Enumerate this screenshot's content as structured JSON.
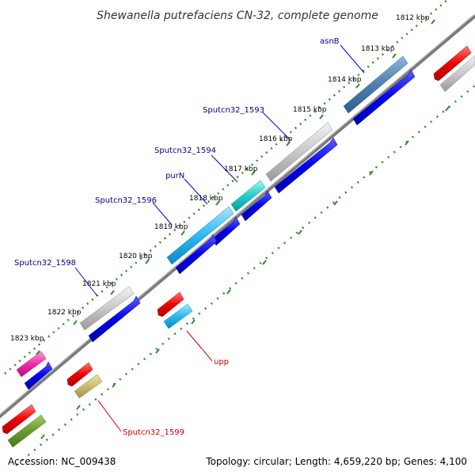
{
  "title": "Shewanella putrefaciens CN-32, complete genome",
  "colors": {
    "backbone": "#6e6e6e",
    "tick": "#2e8b2e",
    "forward_label": "#00008b",
    "reverse_label": "#cc0000",
    "cds_forward": "#0000ee",
    "cds_reverse": "#e00000"
  },
  "scale_ticks": [
    {
      "label": "1812 kbp"
    },
    {
      "label": "1813 kbp"
    },
    {
      "label": "1814 kbp"
    },
    {
      "label": "1815 kbp"
    },
    {
      "label": "1816 kbp"
    },
    {
      "label": "1817 kbp"
    },
    {
      "label": "1818 kbp"
    },
    {
      "label": "1819 kbp"
    },
    {
      "label": "1820 kbp"
    },
    {
      "label": "1821 kbp"
    },
    {
      "label": "1822 kbp"
    },
    {
      "label": "1823 kbp"
    }
  ],
  "gene_labels": [
    {
      "name": "asnB",
      "strand": "forward"
    },
    {
      "name": "Sputcn32_1593",
      "strand": "forward"
    },
    {
      "name": "Sputcn32_1594",
      "strand": "forward"
    },
    {
      "name": "purN",
      "strand": "forward"
    },
    {
      "name": "Sputcn32_1596",
      "strand": "forward"
    },
    {
      "name": "Sputcn32_1598",
      "strand": "forward"
    },
    {
      "name": "upp",
      "strand": "reverse"
    },
    {
      "name": "Sputcn32_1599",
      "strand": "reverse"
    }
  ],
  "footer": {
    "accession": "Accession: NC_009438",
    "summary": "Topology: circular; Length: 4,659,220 bp; Genes: 4,100"
  }
}
